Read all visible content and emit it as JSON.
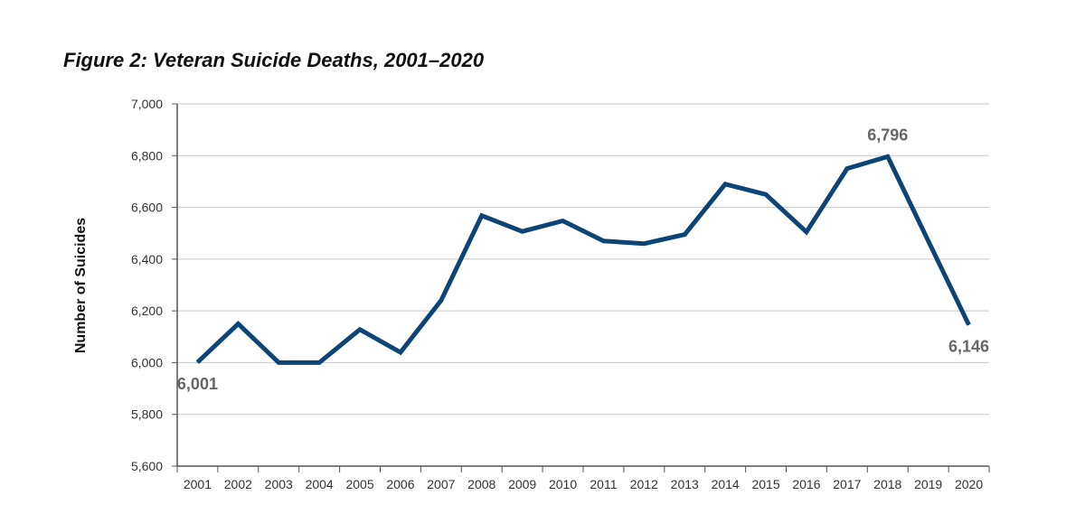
{
  "chart_data": {
    "type": "line",
    "title": "Figure 2: Veteran Suicide Deaths, 2001–2020",
    "xlabel": "",
    "ylabel": "Number of Suicides",
    "ylim": [
      5600,
      7000
    ],
    "yticks": [
      "5,600",
      "5,800",
      "6,000",
      "6,200",
      "6,400",
      "6,600",
      "6,800",
      "7,000"
    ],
    "ytick_values": [
      5600,
      5800,
      6000,
      6200,
      6400,
      6600,
      6800,
      7000
    ],
    "categories": [
      "2001",
      "2002",
      "2003",
      "2004",
      "2005",
      "2006",
      "2007",
      "2008",
      "2009",
      "2010",
      "2011",
      "2012",
      "2013",
      "2014",
      "2015",
      "2016",
      "2017",
      "2018",
      "2019",
      "2020"
    ],
    "series": [
      {
        "values": [
          6001,
          6150,
          6000,
          6000,
          6128,
          6040,
          6240,
          6568,
          6507,
          6548,
          6470,
          6460,
          6495,
          6690,
          6650,
          6505,
          6750,
          6796,
          6470,
          6146
        ]
      }
    ],
    "annotations": [
      {
        "index": 0,
        "text": "6,001",
        "pos": "below"
      },
      {
        "index": 17,
        "text": "6,796",
        "pos": "above"
      },
      {
        "index": 19,
        "text": "6,146",
        "pos": "below"
      }
    ],
    "grid": true,
    "line_color": "#0b4475",
    "grid_color": "#c8c8c8"
  }
}
